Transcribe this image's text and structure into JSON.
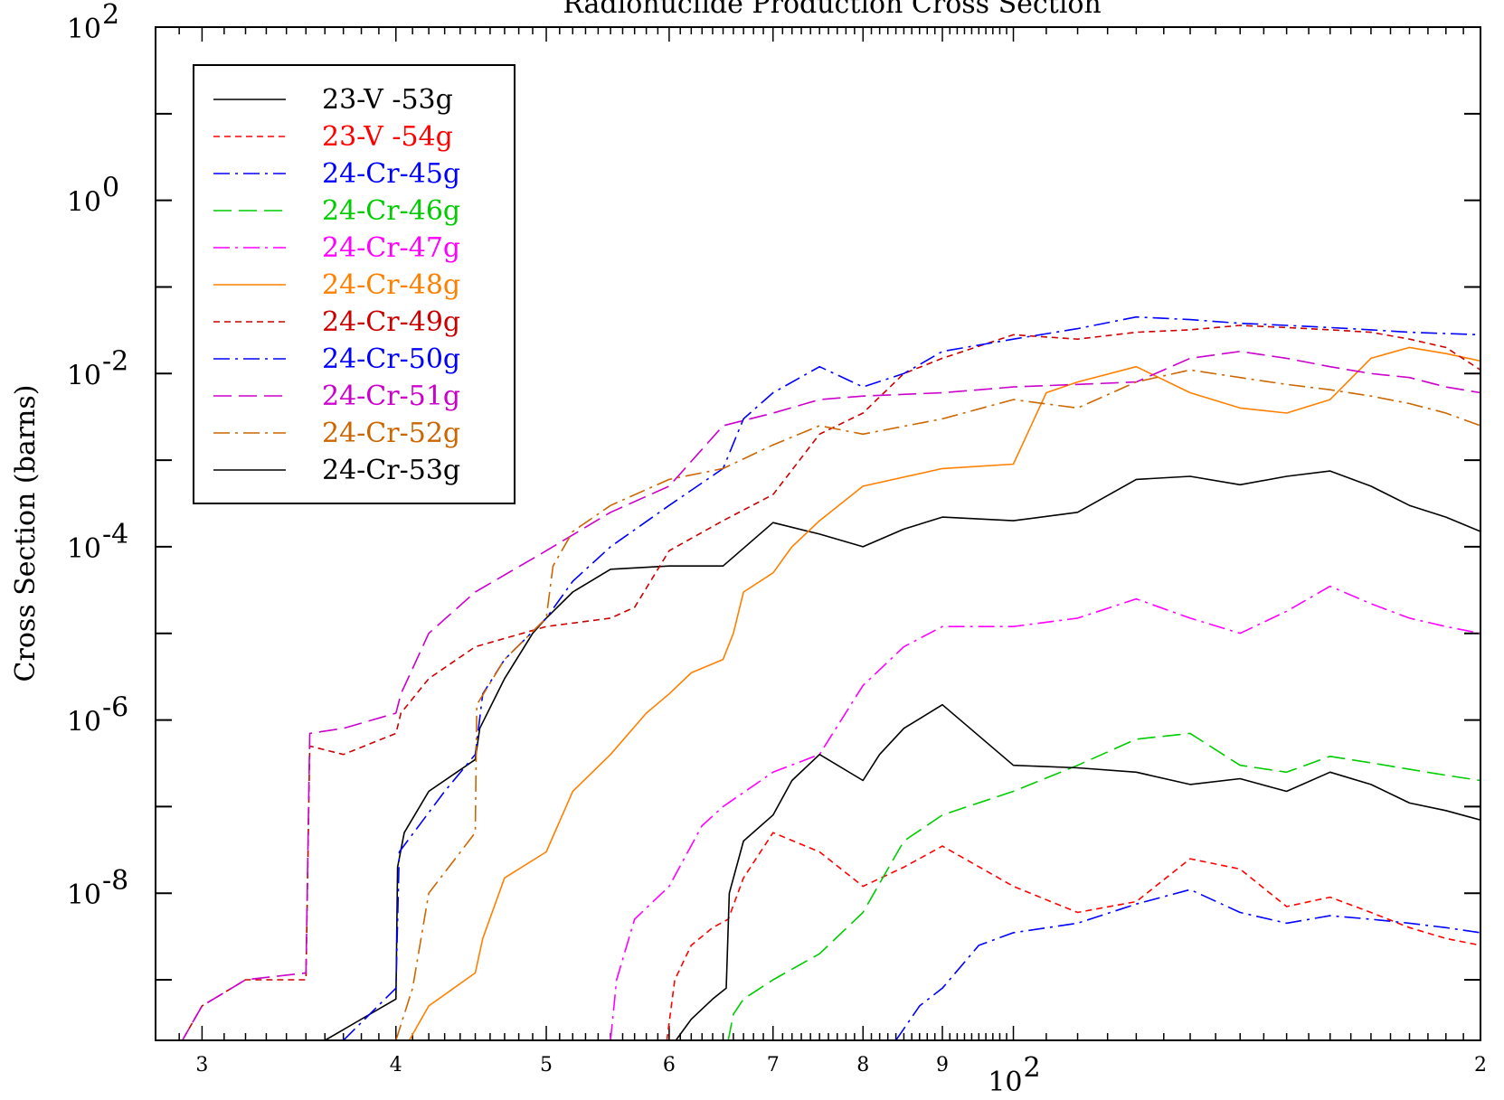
{
  "chart_data": {
    "type": "line",
    "title": "Radionuclide Production Cross Section",
    "xlabel": "",
    "ylabel": "Cross Section (barns)",
    "x_scale": "log",
    "y_scale": "log",
    "xlim": [
      28,
      200
    ],
    "ylim": [
      2e-10,
      100
    ],
    "legend_position": "top-left",
    "grid": false,
    "x_tick_labels": [
      {
        "value": 30,
        "label": "3"
      },
      {
        "value": 40,
        "label": "4"
      },
      {
        "value": 50,
        "label": "5"
      },
      {
        "value": 60,
        "label": "6"
      },
      {
        "value": 70,
        "label": "7"
      },
      {
        "value": 80,
        "label": "8"
      },
      {
        "value": 90,
        "label": "9"
      },
      {
        "value": 200,
        "label": "2"
      }
    ],
    "x_decade_label": {
      "value": 100,
      "base": "10",
      "exp": "2"
    },
    "y_tick_labels": [
      {
        "value": 100,
        "base": "10",
        "exp": "2"
      },
      {
        "value": 1,
        "base": "10",
        "exp": "0"
      },
      {
        "value": 0.01,
        "base": "10",
        "exp": "-2"
      },
      {
        "value": 0.0001,
        "base": "10",
        "exp": "-4"
      },
      {
        "value": 1e-06,
        "base": "10",
        "exp": "-6"
      },
      {
        "value": 1e-08,
        "base": "10",
        "exp": "-8"
      }
    ],
    "series": [
      {
        "name": "23-V -53g",
        "color": "#000000",
        "dash": "solid",
        "x": [
          36,
          40,
          40.1,
          40.5,
          42,
          45,
          45.3,
          47,
          49,
          50,
          52,
          55,
          60,
          65,
          70,
          75,
          80,
          85,
          90,
          100,
          110,
          120,
          130,
          140,
          150,
          160,
          170,
          180,
          190,
          200
        ],
        "y": [
          2e-10,
          6e-10,
          2e-08,
          5e-08,
          1.5e-07,
          3.5e-07,
          8e-07,
          3e-06,
          1e-05,
          1.5e-05,
          3e-05,
          5.5e-05,
          6e-05,
          6e-05,
          0.00019,
          0.00014,
          0.0001,
          0.00016,
          0.00022,
          0.0002,
          0.00025,
          0.0006,
          0.00065,
          0.00052,
          0.00065,
          0.00075,
          0.0005,
          0.0003,
          0.00022,
          0.00015
        ]
      },
      {
        "name": "23-V -54g",
        "color": "#ff0000",
        "dash": "short-dash",
        "x": [
          59.8,
          60.5,
          62,
          64,
          65.5,
          67,
          70,
          75,
          80,
          85,
          90,
          100,
          110,
          120,
          130,
          140,
          150,
          160,
          170,
          180,
          190,
          200
        ],
        "y": [
          2e-10,
          1e-09,
          2.5e-09,
          4e-09,
          5e-09,
          1.5e-08,
          5e-08,
          3e-08,
          1.2e-08,
          2e-08,
          3.5e-08,
          1.2e-08,
          6e-09,
          8e-09,
          2.5e-08,
          1.9e-08,
          7e-09,
          9e-09,
          6e-09,
          4e-09,
          3e-09,
          2.5e-09
        ]
      },
      {
        "name": "24-Cr-45g",
        "color": "#0000ff",
        "dash": "dash-dot",
        "x": [
          84,
          87,
          90,
          95,
          100,
          110,
          120,
          130,
          140,
          150,
          160,
          170,
          180,
          190,
          200
        ],
        "y": [
          2e-10,
          5e-10,
          8e-10,
          2.5e-09,
          3.5e-09,
          4.5e-09,
          7.5e-09,
          1.1e-08,
          6e-09,
          4.5e-09,
          5.5e-09,
          5e-09,
          4.5e-09,
          4e-09,
          3.5e-09
        ]
      },
      {
        "name": "24-Cr-46g",
        "color": "#00cc00",
        "dash": "long-dash",
        "x": [
          65.5,
          66,
          67,
          70,
          75,
          80,
          85,
          90,
          100,
          110,
          120,
          130,
          140,
          150,
          160,
          170,
          180,
          190,
          200
        ],
        "y": [
          2e-10,
          4e-10,
          6e-10,
          1e-09,
          2e-09,
          6e-09,
          4e-08,
          8e-08,
          1.5e-07,
          3e-07,
          6e-07,
          7e-07,
          3e-07,
          2.5e-07,
          3.8e-07,
          3.2e-07,
          2.7e-07,
          2.3e-07,
          2e-07
        ]
      },
      {
        "name": "24-Cr-47g",
        "color": "#ff00ff",
        "dash": "dash-dot",
        "x": [
          55,
          55.5,
          57,
          60,
          63,
          65,
          70,
          75,
          80,
          85,
          90,
          100,
          110,
          120,
          130,
          140,
          150,
          160,
          170,
          180,
          190,
          200
        ],
        "y": [
          2e-10,
          1e-09,
          5e-09,
          1.2e-08,
          6e-08,
          1e-07,
          2.5e-07,
          4e-07,
          2.5e-06,
          7e-06,
          1.2e-05,
          1.2e-05,
          1.5e-05,
          2.5e-05,
          1.5e-05,
          1e-05,
          1.8e-05,
          3.5e-05,
          2.2e-05,
          1.5e-05,
          1.2e-05,
          1e-05
        ]
      },
      {
        "name": "24-Cr-48g",
        "color": "#ff8000",
        "dash": "solid",
        "x": [
          40.8,
          42,
          45,
          45.5,
          47,
          50,
          52,
          55,
          58,
          60,
          62,
          65,
          66,
          67,
          70,
          72,
          75,
          80,
          90,
          100,
          105,
          110,
          120,
          130,
          140,
          150,
          160,
          170,
          180,
          190,
          200
        ],
        "y": [
          2e-10,
          5e-10,
          1.2e-09,
          3e-09,
          1.5e-08,
          3e-08,
          1.5e-07,
          4e-07,
          1.2e-06,
          2e-06,
          3.5e-06,
          5e-06,
          1e-05,
          3e-05,
          5e-05,
          0.0001,
          0.0002,
          0.0005,
          0.0008,
          0.0009,
          0.006,
          0.008,
          0.012,
          0.006,
          0.004,
          0.0035,
          0.005,
          0.015,
          0.02,
          0.017,
          0.014
        ]
      },
      {
        "name": "24-Cr-49g",
        "color": "#cc0000",
        "dash": "short-dash",
        "x": [
          28.5,
          30,
          32,
          35,
          35.2,
          37,
          40,
          40.3,
          42,
          45,
          50,
          55,
          57,
          60,
          65,
          70,
          75,
          80,
          85,
          90,
          100,
          110,
          120,
          130,
          140,
          150,
          160,
          170,
          180,
          190,
          200
        ],
        "y": [
          1e-10,
          5e-10,
          1e-09,
          1e-09,
          5e-07,
          4e-07,
          7e-07,
          1.2e-06,
          3e-06,
          7e-06,
          1.2e-05,
          1.5e-05,
          2e-05,
          9e-05,
          0.0002,
          0.0004,
          0.002,
          0.0035,
          0.01,
          0.015,
          0.028,
          0.025,
          0.03,
          0.032,
          0.036,
          0.034,
          0.032,
          0.03,
          0.025,
          0.02,
          0.011
        ]
      },
      {
        "name": "24-Cr-50g",
        "color": "#0000ff",
        "dash": "dash-dot",
        "x": [
          37,
          40,
          40.2,
          43,
          45,
          45.5,
          47,
          50,
          52,
          55,
          60,
          65,
          67,
          70,
          75,
          80,
          85,
          90,
          100,
          110,
          120,
          130,
          140,
          150,
          160,
          170,
          180,
          190,
          200
        ],
        "y": [
          2e-10,
          8e-10,
          3e-08,
          1.5e-07,
          4e-07,
          2e-06,
          5e-06,
          1.5e-05,
          4e-05,
          0.0001,
          0.0003,
          0.0008,
          0.003,
          0.006,
          0.012,
          0.007,
          0.01,
          0.018,
          0.025,
          0.033,
          0.045,
          0.042,
          0.038,
          0.036,
          0.034,
          0.032,
          0.03,
          0.029,
          0.028
        ]
      },
      {
        "name": "24-Cr-51g",
        "color": "#cc00cc",
        "dash": "long-dash",
        "x": [
          28.5,
          30,
          32,
          35,
          35.2,
          37,
          40,
          40.3,
          42,
          45,
          50,
          55,
          60,
          65,
          70,
          75,
          80,
          90,
          100,
          110,
          120,
          130,
          140,
          150,
          160,
          170,
          180,
          190,
          200
        ],
        "y": [
          1e-10,
          5e-10,
          1e-09,
          1.2e-09,
          7e-07,
          8e-07,
          1.2e-06,
          2e-06,
          1e-05,
          3e-05,
          9e-05,
          0.00025,
          0.0005,
          0.0025,
          0.0035,
          0.005,
          0.0055,
          0.006,
          0.007,
          0.0075,
          0.008,
          0.015,
          0.018,
          0.015,
          0.012,
          0.01,
          0.009,
          0.007,
          0.006
        ]
      },
      {
        "name": "24-Cr-52g",
        "color": "#cc6600",
        "dash": "dash-dot",
        "x": [
          40,
          41,
          42,
          45,
          45.1,
          47,
          50,
          50.5,
          52,
          55,
          60,
          65,
          70,
          75,
          80,
          90,
          100,
          110,
          120,
          130,
          140,
          150,
          160,
          170,
          180,
          190,
          200
        ],
        "y": [
          2e-10,
          8e-10,
          1e-08,
          5e-08,
          1.5e-06,
          5e-06,
          1.5e-05,
          6e-05,
          0.00015,
          0.0003,
          0.0006,
          0.0008,
          0.0015,
          0.0025,
          0.002,
          0.003,
          0.005,
          0.004,
          0.008,
          0.011,
          0.009,
          0.0075,
          0.0065,
          0.0055,
          0.0045,
          0.0035,
          0.0025
        ]
      },
      {
        "name": "24-Cr-53g",
        "color": "#000000",
        "dash": "solid",
        "x": [
          60.6,
          62,
          64,
          65.3,
          65.6,
          67,
          70,
          72,
          75,
          80,
          82,
          85,
          90,
          100,
          110,
          120,
          130,
          140,
          150,
          160,
          170,
          180,
          190,
          200
        ],
        "y": [
          2e-10,
          3.5e-10,
          6e-10,
          8e-10,
          1e-08,
          4e-08,
          8e-08,
          2e-07,
          4e-07,
          2e-07,
          4e-07,
          8e-07,
          1.5e-06,
          3e-07,
          2.8e-07,
          2.5e-07,
          1.8e-07,
          2.1e-07,
          1.5e-07,
          2.5e-07,
          1.8e-07,
          1.1e-07,
          9e-08,
          7e-08
        ]
      }
    ]
  }
}
